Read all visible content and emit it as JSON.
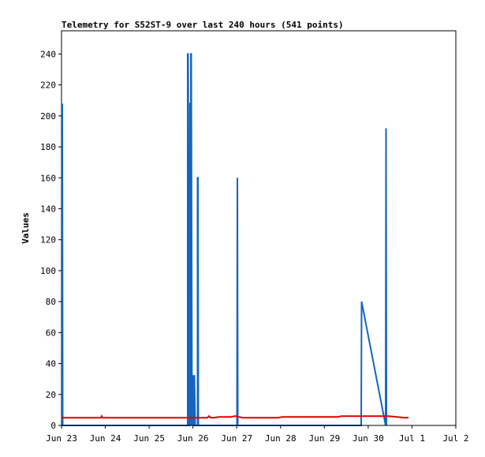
{
  "chart_data": {
    "type": "line",
    "title": "Telemetry for S52ST-9 over last 240 hours (541 points)",
    "xlabel": "",
    "ylabel": "Values",
    "ylim": [
      0,
      255
    ],
    "xlim_days": [
      0,
      10
    ],
    "x_ticks": [
      "Jun 23",
      "Jun 24",
      "Jun 25",
      "Jun 26",
      "Jun 27",
      "Jun 28",
      "Jun 29",
      "Jun 30",
      "Jul 1",
      "Jul 2"
    ],
    "y_ticks": [
      0,
      20,
      40,
      60,
      80,
      100,
      120,
      140,
      160,
      180,
      200,
      220,
      240
    ],
    "grid": false,
    "series": [
      {
        "color": "#1565c0",
        "x": [
          0.02,
          0.02,
          0.02,
          0.03,
          3.2,
          3.2,
          3.21,
          3.22,
          3.22,
          3.23,
          3.26,
          3.26,
          3.27,
          3.28,
          3.28,
          3.29,
          3.31,
          3.31,
          3.32,
          3.35,
          3.36,
          3.36,
          3.37,
          3.39,
          3.45,
          3.45,
          3.46,
          3.47,
          3.47,
          3.48,
          4.45,
          4.46,
          4.46,
          4.47,
          7.6,
          7.61,
          7.61,
          8.22,
          8.23,
          8.23,
          8.24
        ],
        "values": [
          0,
          208,
          208,
          0,
          0,
          240,
          240,
          177,
          177,
          0,
          0,
          208,
          208,
          0,
          240,
          240,
          0,
          32,
          32,
          0,
          0,
          32,
          32,
          0,
          0,
          160,
          160,
          0,
          0,
          0,
          0,
          160,
          160,
          0,
          0,
          80,
          80,
          0,
          192,
          192,
          0
        ]
      },
      {
        "color": "#e00000",
        "x": [
          0.0,
          1.0,
          1.02,
          1.04,
          1.06,
          2.0,
          3.0,
          3.2,
          3.5,
          3.7,
          3.74,
          3.78,
          3.85,
          4.0,
          4.3,
          4.4,
          4.6,
          5.0,
          5.5,
          5.6,
          6.0,
          6.5,
          7.0,
          7.1,
          7.5,
          8.0,
          8.3,
          8.5,
          8.7,
          8.8
        ],
        "values": [
          5,
          5,
          6,
          5,
          5,
          5,
          5,
          5,
          5,
          5,
          6,
          5,
          5,
          5.5,
          5.5,
          6,
          5,
          5,
          5,
          5.5,
          5.5,
          5.5,
          5.5,
          6,
          6,
          6,
          6,
          5.5,
          5,
          5
        ]
      }
    ]
  }
}
